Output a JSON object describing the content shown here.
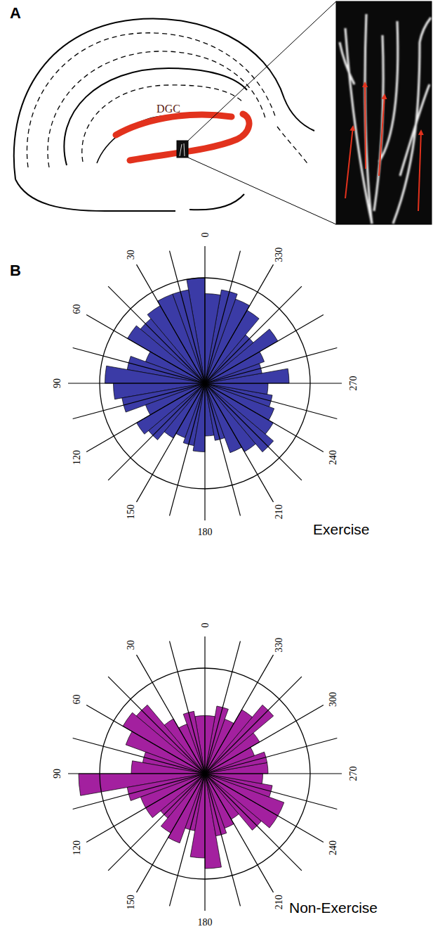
{
  "figure": {
    "panel_a": {
      "letter": "A",
      "region_label": "DGC"
    },
    "panel_b": {
      "letter": "B"
    }
  },
  "chart_data": [
    {
      "type": "rose",
      "title": "Exercise",
      "color": "#3b3ba6",
      "grid": true,
      "tick_labels": "x",
      "bins": [
        0,
        10,
        20,
        30,
        40,
        50,
        60,
        70,
        80,
        90,
        100,
        110,
        120,
        130,
        140,
        150,
        160,
        170,
        180,
        190,
        200,
        210,
        220,
        230,
        240,
        250,
        260,
        270,
        280,
        290,
        300,
        310,
        320,
        330,
        340,
        350,
        360
      ],
      "values": [
        1.0,
        0.9,
        0.9,
        0.85,
        0.8,
        0.85,
        0.6,
        0.75,
        0.95,
        0.87,
        0.8,
        0.6,
        0.75,
        0.7,
        0.6,
        0.55,
        0.6,
        0.65,
        0.5,
        0.55,
        0.7,
        0.75,
        0.85,
        0.75,
        0.7,
        0.65,
        0.6,
        0.8,
        0.55,
        0.6,
        0.8,
        0.6,
        0.8,
        0.85,
        0.9,
        0.85
      ],
      "xlim": [
        0,
        360
      ],
      "xticks": [
        0,
        {
          "value": 15,
          "label": null
        },
        30,
        {
          "value": 45,
          "label": null
        },
        60,
        {
          "value": 75,
          "label": null
        },
        90,
        {
          "value": 105,
          "label": null
        },
        120,
        {
          "value": 135,
          "label": null
        },
        150,
        {
          "value": 165,
          "label": null
        },
        180,
        {
          "value": 195,
          "label": null
        },
        210,
        {
          "value": 225,
          "label": null
        },
        240,
        {
          "value": 255,
          "label": null
        },
        270,
        {
          "value": 285,
          "label": null
        },
        {
          "value": 300,
          "label": null
        },
        {
          "value": 315,
          "label": null
        },
        330,
        {
          "value": 345,
          "label": null
        }
      ],
      "ylim": [
        0,
        1.3
      ],
      "yticks": [
        1
      ]
    },
    {
      "type": "rose",
      "title": "Non-Exercise",
      "color": "#a3209f",
      "grid": true,
      "tick_labels": "x",
      "bins": [
        0,
        10,
        20,
        30,
        40,
        50,
        60,
        70,
        80,
        90,
        100,
        110,
        120,
        130,
        140,
        150,
        160,
        170,
        180,
        190,
        200,
        210,
        220,
        230,
        240,
        250,
        260,
        270,
        280,
        290,
        300,
        310,
        320,
        330,
        340,
        350,
        360
      ],
      "values": [
        0.55,
        0.6,
        0.5,
        0.6,
        0.85,
        0.9,
        0.8,
        0.6,
        0.7,
        1.2,
        0.75,
        0.65,
        0.65,
        0.55,
        0.65,
        0.7,
        0.55,
        0.8,
        0.9,
        0.6,
        0.55,
        0.5,
        0.7,
        0.8,
        0.8,
        0.65,
        0.55,
        0.6,
        0.6,
        0.5,
        0.6,
        0.85,
        0.7,
        0.55,
        0.65,
        0.55
      ],
      "xlim": [
        0,
        360
      ],
      "xticks": [
        0,
        {
          "value": 15,
          "label": null
        },
        30,
        {
          "value": 45,
          "label": null
        },
        60,
        {
          "value": 75,
          "label": null
        },
        90,
        {
          "value": 105,
          "label": null
        },
        120,
        {
          "value": 135,
          "label": null
        },
        150,
        {
          "value": 165,
          "label": null
        },
        180,
        {
          "value": 195,
          "label": null
        },
        210,
        {
          "value": 225,
          "label": null
        },
        240,
        {
          "value": 255,
          "label": null
        },
        270,
        {
          "value": 285,
          "label": null
        },
        300,
        {
          "value": 315,
          "label": null
        },
        330,
        {
          "value": 345,
          "label": null
        }
      ],
      "ylim": [
        0,
        1.3
      ],
      "yticks": [
        1
      ]
    }
  ]
}
